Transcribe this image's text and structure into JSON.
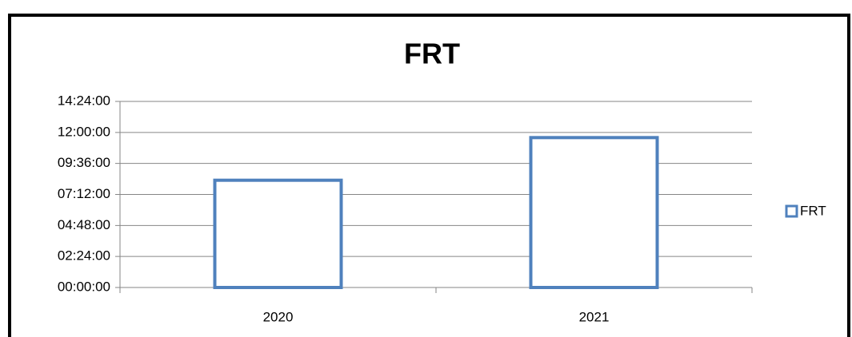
{
  "chart_data": {
    "type": "bar",
    "title": "FRT",
    "categories": [
      "2020",
      "2021"
    ],
    "series": [
      {
        "name": "FRT",
        "color": "#4f81bd",
        "values": [
          8.3,
          11.6
        ]
      }
    ],
    "ylim": [
      0,
      14.4
    ],
    "yticks": [
      {
        "value": 0,
        "label": "00:00:00"
      },
      {
        "value": 2.4,
        "label": "02:24:00"
      },
      {
        "value": 4.8,
        "label": "04:48:00"
      },
      {
        "value": 7.2,
        "label": "07:12:00"
      },
      {
        "value": 9.6,
        "label": "09:36:00"
      },
      {
        "value": 12,
        "label": "12:00:00"
      },
      {
        "value": 14.4,
        "label": "14:24:00"
      }
    ],
    "grid": true,
    "legend": "right"
  }
}
